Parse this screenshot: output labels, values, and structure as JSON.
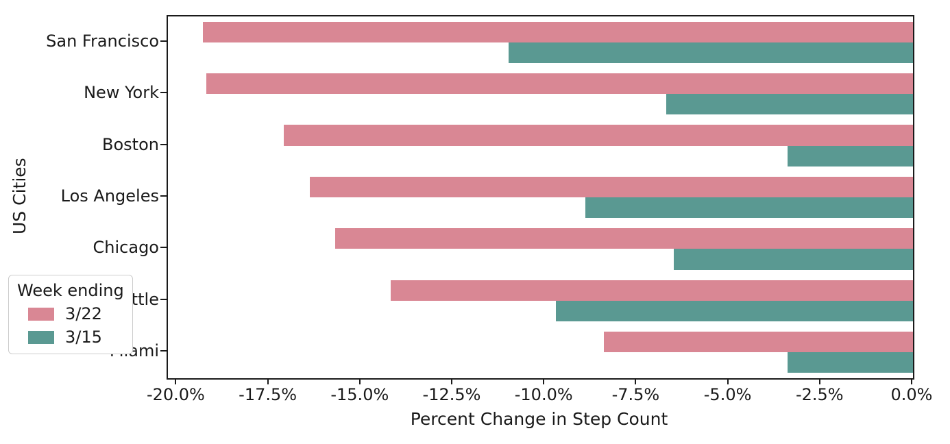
{
  "chart_data": {
    "type": "bar",
    "orientation": "horizontal",
    "title": "",
    "xlabel": "Percent Change in Step Count",
    "ylabel": "US Cities",
    "categories": [
      "San Francisco",
      "New York",
      "Boston",
      "Los Angeles",
      "Chicago",
      "Seattle",
      "Miami"
    ],
    "series": [
      {
        "name": "3/22",
        "color": "#d98794",
        "values": [
          -19.3,
          -19.2,
          -17.1,
          -16.4,
          -15.7,
          -14.2,
          -8.4
        ]
      },
      {
        "name": "3/15",
        "color": "#5a9992",
        "values": [
          -11.0,
          -6.7,
          -3.4,
          -8.9,
          -6.5,
          -9.7,
          -3.4
        ]
      }
    ],
    "xlim": [
      -20.25,
      0
    ],
    "xtick_values": [
      -20,
      -17.5,
      -15,
      -12.5,
      -10,
      -7.5,
      -5,
      -2.5,
      0
    ],
    "xtick_labels": [
      "-20.0%",
      "-17.5%",
      "-15.0%",
      "-12.5%",
      "-10.0%",
      "-7.5%",
      "-5.0%",
      "-2.5%",
      "0.0%"
    ],
    "grid": false,
    "legend": {
      "title": "Week ending",
      "position": "lower left"
    },
    "frame_color": "#1a1a1a",
    "background_color": "#ffffff"
  }
}
